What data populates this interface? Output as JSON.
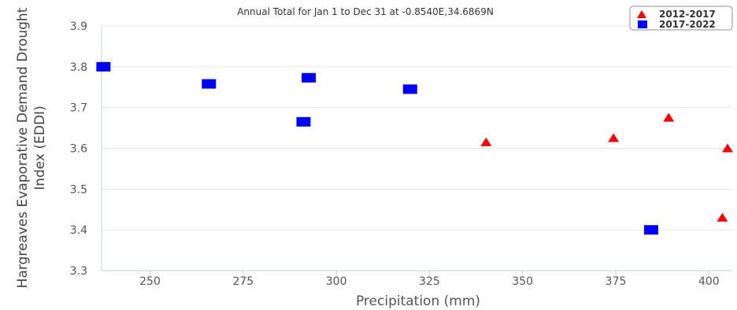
{
  "chart_data": {
    "type": "scatter",
    "title": "Annual Total for Jan 1 to Dec 31 at -0.8540E,34.6869N",
    "xlabel": "Precipitation (mm)",
    "ylabel": [
      "Hargreaves Evaporative Demand Drought",
      "Index (EDDI)"
    ],
    "xlim": [
      237,
      405
    ],
    "ylim": [
      3.3,
      3.9
    ],
    "xticks": [
      250,
      275,
      300,
      325,
      350,
      375,
      400
    ],
    "yticks": [
      3.3,
      3.4,
      3.5,
      3.6,
      3.7,
      3.8,
      3.9
    ],
    "xtick_labels": [
      "250",
      "275",
      "300",
      "325",
      "350",
      "375",
      "400"
    ],
    "ytick_labels": [
      "3.3",
      "3.4",
      "3.5",
      "3.6",
      "3.7",
      "3.8",
      "3.9"
    ],
    "grid": true,
    "legend_position": "top-right",
    "series": [
      {
        "name": "2012-2017",
        "marker": "triangle",
        "color": "#ff0000",
        "points": [
          {
            "x": 340.2,
            "y": 3.615
          },
          {
            "x": 374.4,
            "y": 3.625
          },
          {
            "x": 389.2,
            "y": 3.675
          },
          {
            "x": 403.6,
            "y": 3.43
          },
          {
            "x": 405.0,
            "y": 3.6
          }
        ]
      },
      {
        "name": "2017-2022",
        "marker": "square",
        "color": "#0000ff",
        "points": [
          {
            "x": 237.5,
            "y": 3.8
          },
          {
            "x": 265.8,
            "y": 3.758
          },
          {
            "x": 291.2,
            "y": 3.665
          },
          {
            "x": 292.6,
            "y": 3.773
          },
          {
            "x": 319.8,
            "y": 3.745
          },
          {
            "x": 384.5,
            "y": 3.4
          }
        ]
      }
    ]
  }
}
